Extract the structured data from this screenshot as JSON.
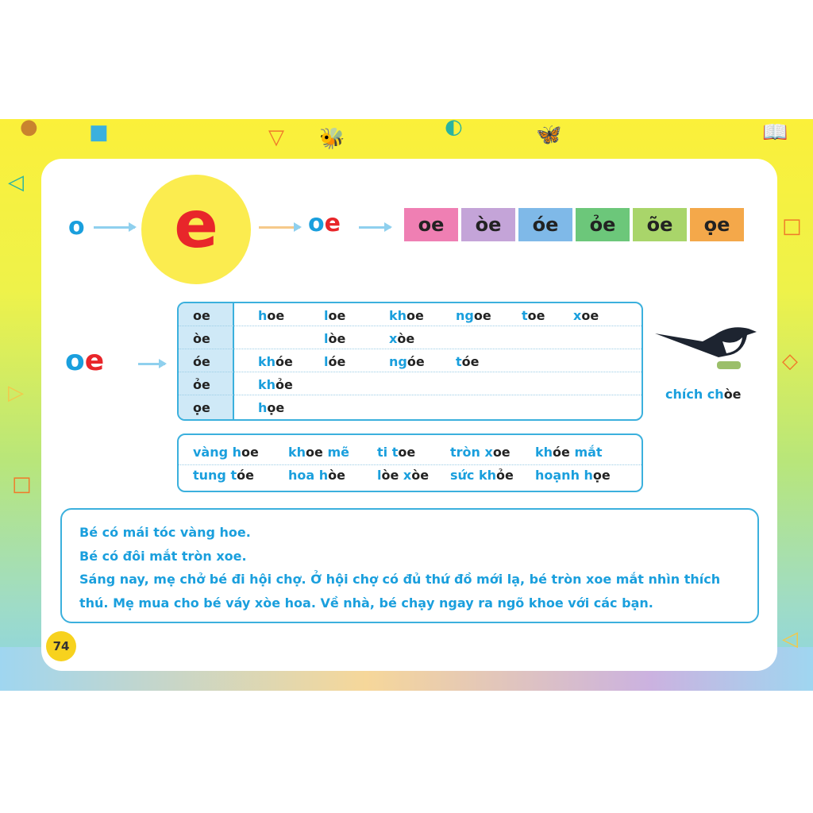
{
  "intro": {
    "letter_o": "o",
    "letter_e": "e",
    "combo": [
      [
        "o",
        "b"
      ],
      [
        "e",
        "r"
      ]
    ]
  },
  "tiles": [
    {
      "label": "oe",
      "color": "#ef7fb3"
    },
    {
      "label": "òe",
      "color": "#c4a4d8"
    },
    {
      "label": "óe",
      "color": "#7fb9e8"
    },
    {
      "label": "ỏe",
      "color": "#6cc77a"
    },
    {
      "label": "õe",
      "color": "#a9d56a"
    },
    {
      "label": "ọe",
      "color": "#f4a84a"
    }
  ],
  "big_oe": [
    [
      "o",
      "b"
    ],
    [
      "e",
      "r"
    ]
  ],
  "table": [
    {
      "rhyme": "oe",
      "words": [
        [
          [
            "h",
            "b"
          ],
          [
            "oe",
            "k"
          ]
        ],
        [
          [
            "l",
            "b"
          ],
          [
            "oe",
            "k"
          ]
        ],
        [
          [
            "kh",
            "b"
          ],
          [
            "oe",
            "k"
          ]
        ],
        [
          [
            "ng",
            "b"
          ],
          [
            "oe",
            "k"
          ]
        ],
        [
          [
            "t",
            "b"
          ],
          [
            "oe",
            "k"
          ]
        ],
        [
          [
            "x",
            "b"
          ],
          [
            "oe",
            "k"
          ]
        ]
      ]
    },
    {
      "rhyme": "òe",
      "words": [
        null,
        [
          [
            "l",
            "b"
          ],
          [
            "òe",
            "k"
          ]
        ],
        [
          [
            "x",
            "b"
          ],
          [
            "òe",
            "k"
          ]
        ]
      ]
    },
    {
      "rhyme": "óe",
      "words": [
        [
          [
            "kh",
            "b"
          ],
          [
            "óe",
            "k"
          ]
        ],
        [
          [
            "l",
            "b"
          ],
          [
            "óe",
            "k"
          ]
        ],
        [
          [
            "ng",
            "b"
          ],
          [
            "óe",
            "k"
          ]
        ],
        [
          [
            "t",
            "b"
          ],
          [
            "óe",
            "k"
          ]
        ]
      ]
    },
    {
      "rhyme": "ỏe",
      "words": [
        [
          [
            "kh",
            "b"
          ],
          [
            "ỏe",
            "k"
          ]
        ]
      ]
    },
    {
      "rhyme": "ọe",
      "words": [
        [
          [
            "h",
            "b"
          ],
          [
            "ọe",
            "k"
          ]
        ]
      ]
    }
  ],
  "picture_caption": [
    [
      "chích ch",
      "b"
    ],
    [
      "òe",
      "k"
    ]
  ],
  "phrases": [
    [
      [
        [
          "vàng h",
          "b"
        ],
        [
          "oe",
          "k"
        ]
      ],
      [
        [
          "kh",
          "b"
        ],
        [
          "oe",
          "k"
        ],
        [
          " mẽ",
          "b"
        ]
      ],
      [
        [
          "ti t",
          "b"
        ],
        [
          "oe",
          "k"
        ]
      ],
      [
        [
          "tròn x",
          "b"
        ],
        [
          "oe",
          "k"
        ]
      ],
      [
        [
          "kh",
          "b"
        ],
        [
          "óe",
          "k"
        ],
        [
          " mắt",
          "b"
        ]
      ]
    ],
    [
      [
        [
          "tung t",
          "b"
        ],
        [
          "óe",
          "k"
        ]
      ],
      [
        [
          "hoa h",
          "b"
        ],
        [
          "òe",
          "k"
        ]
      ],
      [
        [
          "l",
          "b"
        ],
        [
          "òe",
          "k"
        ],
        [
          " x",
          "b"
        ],
        [
          "òe",
          "k"
        ]
      ],
      [
        [
          "sức kh",
          "b"
        ],
        [
          "ỏe",
          "k"
        ]
      ],
      [
        [
          "hoạnh h",
          "b"
        ],
        [
          "ọe",
          "k"
        ]
      ]
    ]
  ],
  "sentences": [
    "Bé có mái tóc vàng hoe.",
    "Bé có đôi mắt tròn xoe.",
    "Sáng nay, mẹ chở bé đi hội chợ. Ở hội chợ có đủ thứ đồ mới lạ, bé tròn xoe mắt nhìn thích thú. Mẹ mua cho bé váy xòe hoa. Về nhà, bé chạy ngay ra ngõ khoe với các bạn."
  ],
  "page_number": "74",
  "colors": {
    "blue": "#1a9fdd",
    "red": "#e8262a",
    "border": "#3bb0dd"
  }
}
